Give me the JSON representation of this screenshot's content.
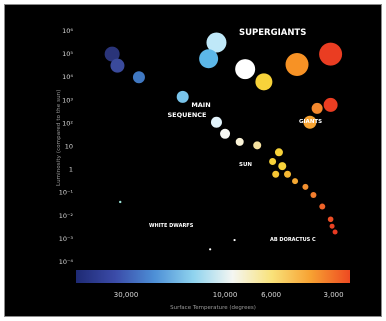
{
  "chart_data": {
    "type": "scatter",
    "title": "",
    "xlabel": "Surface Temperature (degrees)",
    "ylabel": "Luminosity (compared to the sun)",
    "x_scale": "log-reversed",
    "xlim": [
      50000,
      2500
    ],
    "ylim_exp": [
      -4,
      6
    ],
    "x_ticks": [
      30000,
      10000,
      6000,
      3000
    ],
    "x_tick_labels": [
      "30,000",
      "10,000",
      "6,000",
      "3,000"
    ],
    "y_ticks_exp": [
      6,
      5,
      4,
      3,
      2,
      1,
      0,
      -1,
      -2,
      -3,
      -4
    ],
    "y_tick_labels": [
      "10⁶",
      "10⁵",
      "10⁴",
      "10³",
      "10²",
      "10",
      "1",
      "10⁻¹",
      "10⁻²",
      "10⁻³",
      "10⁻⁴"
    ],
    "colorbar": [
      "#1e2a74",
      "#3b4ba8",
      "#4d8fd6",
      "#8fd3ee",
      "#f4f6f2",
      "#f9e27a",
      "#f7a132",
      "#ee4a22"
    ],
    "annotations": [
      {
        "text": "SUPERGIANTS",
        "size": "large"
      },
      {
        "text": "MAIN SEQUENCE",
        "size": "medium"
      },
      {
        "text": "GIANTS",
        "size": "small"
      },
      {
        "text": "SUN",
        "size": "small"
      },
      {
        "text": "WHITE DWARFS",
        "size": "small"
      },
      {
        "text": "AB DORACTUS C",
        "size": "small"
      }
    ],
    "series": [
      {
        "group": "supergiants",
        "points": [
          {
            "temp": 11000,
            "lum_exp": 5.5,
            "size": 10,
            "color": "#bfe8f8"
          },
          {
            "temp": 12000,
            "lum_exp": 4.8,
            "size": 9.5,
            "color": "#5cb7e8"
          },
          {
            "temp": 8000,
            "lum_exp": 4.35,
            "size": 10,
            "color": "#ffffff"
          },
          {
            "temp": 6500,
            "lum_exp": 3.8,
            "size": 8.5,
            "color": "#f7d23a"
          },
          {
            "temp": 4500,
            "lum_exp": 4.55,
            "size": 11.5,
            "color": "#f79225"
          },
          {
            "temp": 3100,
            "lum_exp": 5.0,
            "size": 11.5,
            "color": "#ea3d22"
          }
        ]
      },
      {
        "group": "main-sequence",
        "points": [
          {
            "temp": 35000,
            "lum_exp": 5.0,
            "size": 7.5,
            "color": "#2a3479"
          },
          {
            "temp": 33000,
            "lum_exp": 4.5,
            "size": 7,
            "color": "#3a4a9b"
          },
          {
            "temp": 26000,
            "lum_exp": 4.0,
            "size": 6,
            "color": "#4078c2"
          },
          {
            "temp": 16000,
            "lum_exp": 3.15,
            "size": 6,
            "color": "#79c4ea"
          },
          {
            "temp": 11000,
            "lum_exp": 2.05,
            "size": 5.5,
            "color": "#e2f3fb"
          },
          {
            "temp": 10000,
            "lum_exp": 1.55,
            "size": 5,
            "color": "#f6f7f3"
          },
          {
            "temp": 8500,
            "lum_exp": 1.2,
            "size": 4,
            "color": "#fbf4d8"
          },
          {
            "temp": 7000,
            "lum_exp": 1.05,
            "size": 4,
            "color": "#f6e2a0"
          },
          {
            "temp": 5500,
            "lum_exp": 0.75,
            "size": 4,
            "color": "#f7d23a"
          },
          {
            "temp": 5900,
            "lum_exp": 0.35,
            "size": 3.5,
            "color": "#f7d23a"
          },
          {
            "temp": 5300,
            "lum_exp": 0.15,
            "size": 4,
            "color": "#f7d23a"
          },
          {
            "temp": 5700,
            "lum_exp": -0.2,
            "size": 3.5,
            "color": "#f6c533"
          },
          {
            "temp": 5000,
            "lum_exp": -0.2,
            "size": 3.5,
            "color": "#f6b833"
          },
          {
            "temp": 4600,
            "lum_exp": -0.5,
            "size": 3,
            "color": "#f5a832"
          },
          {
            "temp": 4100,
            "lum_exp": -0.75,
            "size": 3,
            "color": "#f49130"
          },
          {
            "temp": 3750,
            "lum_exp": -1.1,
            "size": 3,
            "color": "#f27d2d"
          },
          {
            "temp": 3400,
            "lum_exp": -1.6,
            "size": 3,
            "color": "#ef6328"
          },
          {
            "temp": 3100,
            "lum_exp": -2.15,
            "size": 2.8,
            "color": "#ec4e25"
          },
          {
            "temp": 3050,
            "lum_exp": -2.45,
            "size": 2.5,
            "color": "#ea4223"
          },
          {
            "temp": 2950,
            "lum_exp": -2.7,
            "size": 2.5,
            "color": "#e83a22"
          }
        ]
      },
      {
        "group": "giants",
        "points": [
          {
            "temp": 3900,
            "lum_exp": 2.05,
            "size": 6.5,
            "color": "#f7a332"
          },
          {
            "temp": 3600,
            "lum_exp": 2.65,
            "size": 5.5,
            "color": "#f4892e"
          },
          {
            "temp": 3100,
            "lum_exp": 2.8,
            "size": 7,
            "color": "#ea3d22"
          }
        ]
      },
      {
        "group": "white-dwarfs",
        "points": [
          {
            "temp": 32000,
            "lum_exp": -1.4,
            "size": 1.2,
            "color": "#9ce3d8"
          },
          {
            "temp": 11800,
            "lum_exp": -3.45,
            "size": 1.1,
            "color": "#ffffff"
          },
          {
            "temp": 9000,
            "lum_exp": -3.05,
            "size": 1.1,
            "color": "#ffffff"
          }
        ]
      }
    ]
  }
}
